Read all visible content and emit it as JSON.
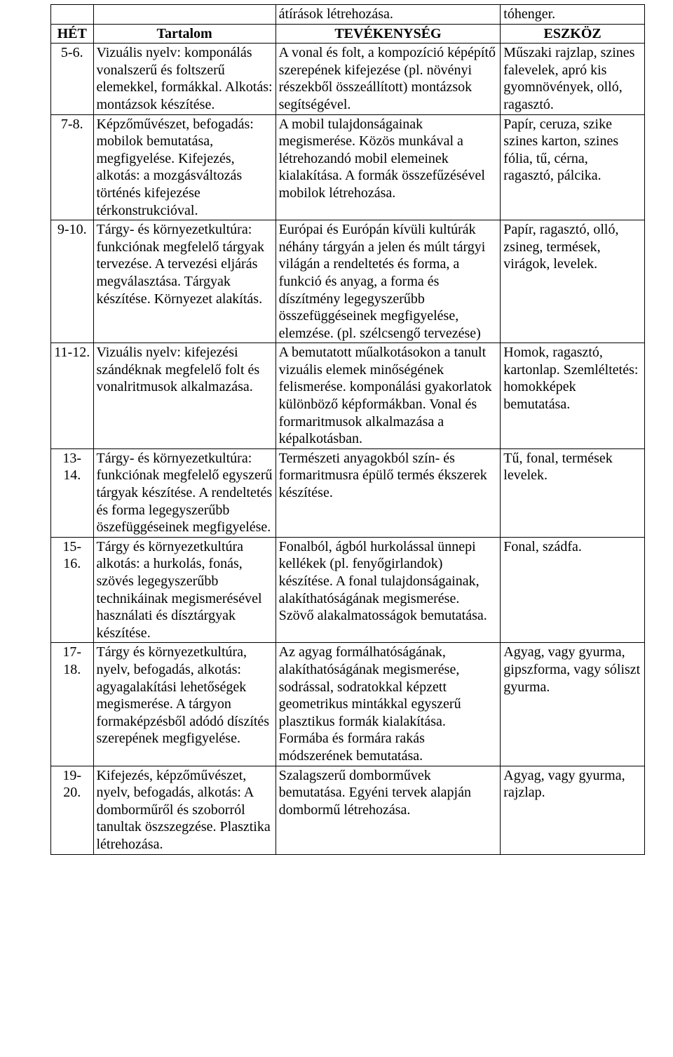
{
  "preHeader": {
    "col3": "átírások létrehozása.",
    "col4": "tóhenger."
  },
  "headers": {
    "het": "HÉT",
    "tartalom": "Tartalom",
    "tevekenyseg": "TEVÉKENYSÉG",
    "eszkoz": "ESZKÖZ"
  },
  "rows": [
    {
      "het": "5-6.",
      "tartalom": "Vizuális nyelv: komponálás vonalszerű és foltszerű elemekkel, formákkal. Alkotás: montázsok készítése.",
      "tevekenyseg": "A vonal és folt, a kompozíció képépítő szerepének kifejezése (pl. növényi részekből összeállított) montázsok segítségével.",
      "eszkoz": "Műszaki rajzlap, szines falevelek, apró kis gyomnövények, olló, ragasztó."
    },
    {
      "het": "7-8.",
      "tartalom": "Képzőművészet, befogadás: mobilok bemutatása, megfigyelése. Kifejezés, alkotás: a mozgásváltozás történés kifejezése térkonstrukcióval.",
      "tevekenyseg": "A mobil tulajdonságainak megismerése. Közös munkával a létrehozandó mobil elemeinek kialakítása. A formák összefűzésével mobilok létrehozása.",
      "eszkoz": "Papír, ceruza, szike szines karton, szines fólia, tű, cérna, ragasztó, pálcika."
    },
    {
      "het": "9-10.",
      "tartalom": "Tárgy- és környezetkultúra: funkciónak megfelelő tárgyak tervezése. A tervezési eljárás megválasztása. Tárgyak készítése. Környezet alakítás.",
      "tevekenyseg": "Európai és Európán kívüli kultúrák néhány tárgyán a jelen és múlt tárgyi világán a rendeltetés és forma, a funkció és anyag, a forma és díszítmény legegyszerűbb összefüggéseinek megfigyelése, elemzése. (pl. szélcsengő tervezése)",
      "eszkoz": "Papír, ragasztó, olló, zsineg, termések, virágok, levelek."
    },
    {
      "het": "11-12.",
      "tartalom": "Vizuális nyelv: kifejezési szándéknak megfelelő folt és vonalritmusok alkalmazása.",
      "tevekenyseg": "A bemutatott műalkotásokon a tanult vizuális elemek minőségének felismerése. komponálási gyakorlatok különböző képformákban. Vonal és formaritmusok alkalmazása a képalkotásban.",
      "eszkoz": "Homok, ragasztó, kartonlap. Szemléltetés: homokképek bemutatása."
    },
    {
      "het": "13-14.",
      "tartalom": "Tárgy- és környezetkultúra: funkciónak megfelelő egyszerű tárgyak készítése. A rendeltetés és forma legegyszerűbb öszefüggéseinek megfigyelése.",
      "tevekenyseg": "Természeti anyagokból szín- és formaritmusra épülő termés ékszerek készítése.",
      "eszkoz": "Tű, fonal, termések levelek."
    },
    {
      "het": "15-16.",
      "tartalom": "Tárgy és környezetkultúra alkotás: a hurkolás, fonás, szövés legegyszerűbb technikáinak megismerésével használati és dísztárgyak készítése.",
      "tevekenyseg": "Fonalból, ágból hurkolással ünnepi kellékek (pl. fenyőgirlandok) készítése. A fonal tulajdonságainak, alakíthatóságának megismerése. Szövő alakalmatosságok bemutatása.",
      "eszkoz": "Fonal, szádfa."
    },
    {
      "het": "17-18.",
      "tartalom": "Tárgy és környezetkultúra, nyelv, befogadás, alkotás: agyagalakítási lehetőségek megismerése. A tárgyon formaképzésből adódó díszítés szerepének megfigyelése.",
      "tevekenyseg": "Az agyag formálhatóságának, alakíthatóságának megismerése, sodrással, sodratokkal képzett geometrikus mintákkal egyszerű plasztikus formák kialakítása. Formába és formára rakás módszerének bemutatása.",
      "eszkoz": "Agyag, vagy gyurma, gipszforma, vagy sóliszt gyurma."
    },
    {
      "het": "19-20.",
      "tartalom": "Kifejezés, képzőművészet, nyelv, befogadás, alkotás: A domborműről és szoborról tanultak öszszegzése. Plasztika létrehozása.",
      "tevekenyseg": "Szalagszerű domborművek bemutatása. Egyéni tervek alapján dombormű létrehozása.",
      "eszkoz": "Agyag, vagy gyurma, rajzlap."
    }
  ]
}
